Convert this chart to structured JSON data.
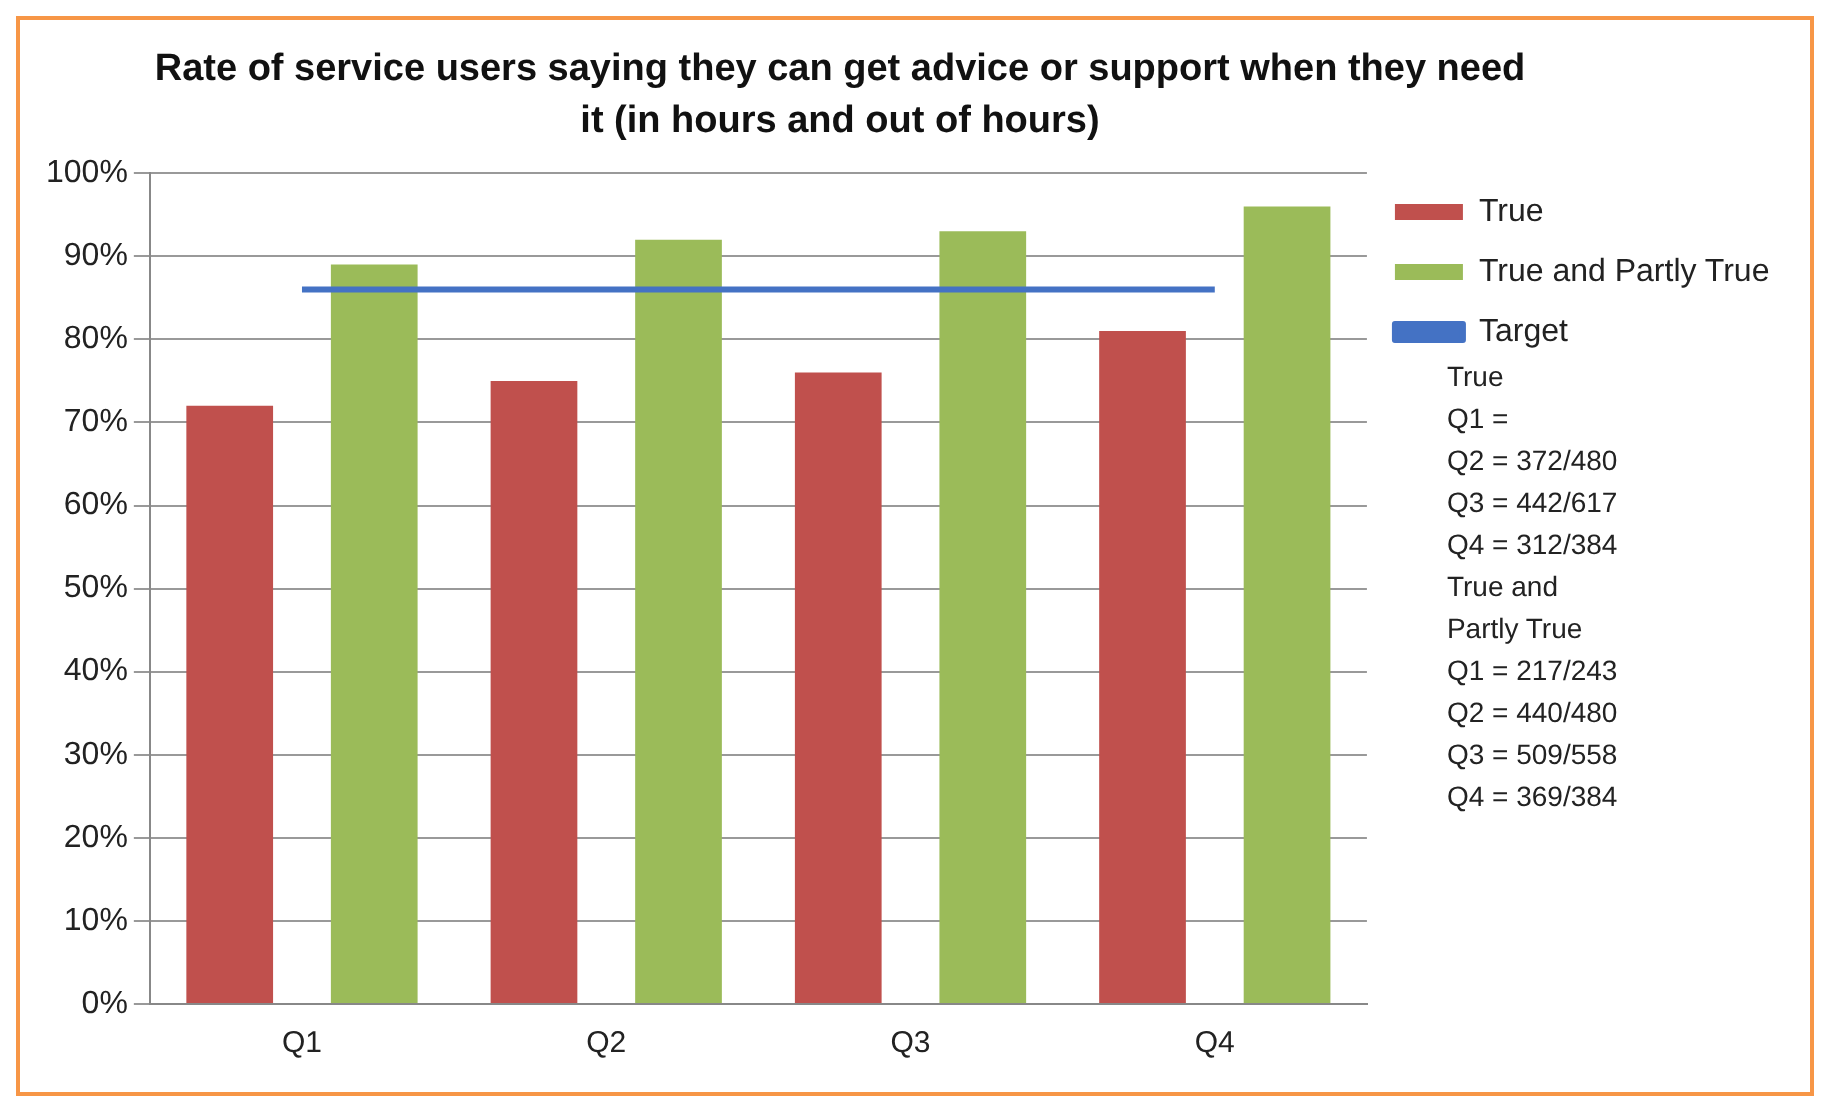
{
  "chart_data": {
    "type": "bar",
    "title": "Rate of service users saying they can get advice or support when they need it (in hours and out of hours)",
    "categories": [
      "Q1",
      "Q2",
      "Q3",
      "Q4"
    ],
    "series": [
      {
        "name": "True",
        "color": "#c0504d",
        "values": [
          72,
          75,
          76,
          81
        ]
      },
      {
        "name": "True and Partly True",
        "color": "#9bbb59",
        "values": [
          89,
          92,
          93,
          96
        ]
      },
      {
        "name": "Target",
        "type": "line",
        "color": "#4472c4",
        "values": [
          86,
          86,
          86,
          86
        ]
      }
    ],
    "ylim": [
      0,
      100
    ],
    "yticks": [
      {
        "value": 0,
        "label": "0%"
      },
      {
        "value": 10,
        "label": "10%"
      },
      {
        "value": 20,
        "label": "20%"
      },
      {
        "value": 30,
        "label": "30%"
      },
      {
        "value": 40,
        "label": "40%"
      },
      {
        "value": 50,
        "label": "50%"
      },
      {
        "value": 60,
        "label": "60%"
      },
      {
        "value": 70,
        "label": "70%"
      },
      {
        "value": 80,
        "label": "80%"
      },
      {
        "value": 90,
        "label": "90%"
      },
      {
        "value": 100,
        "label": "100%"
      }
    ],
    "grid": "y",
    "legend": "right",
    "marker": "none",
    "annotations": [
      "True",
      "Q1 =",
      "Q2 = 372/480",
      "Q3 = 442/617",
      "Q4 = 312/384",
      "True and",
      "Partly True",
      "Q1 = 217/243",
      "Q2 = 440/480",
      "Q3 = 509/558",
      "Q4 = 369/384"
    ]
  }
}
